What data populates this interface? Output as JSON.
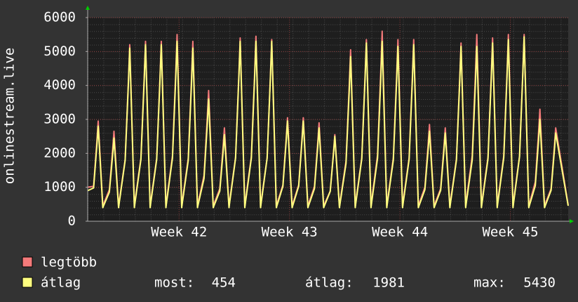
{
  "chart_data": {
    "type": "line",
    "y_axis_label": "onlinestream.live",
    "x": [
      0,
      9,
      14,
      16,
      23,
      33,
      38,
      40,
      47,
      57,
      62,
      64,
      71,
      81,
      86,
      88,
      95,
      105,
      110,
      112,
      119,
      129,
      134,
      136,
      143,
      153,
      158,
      160,
      167,
      177,
      182,
      184,
      191,
      201,
      206,
      208,
      215,
      225,
      230,
      232,
      239,
      249,
      254,
      256,
      263,
      273,
      278,
      280,
      287,
      297,
      302,
      304,
      311,
      321,
      326,
      328,
      335,
      345,
      350,
      352,
      359,
      369,
      374,
      376,
      383,
      393,
      398,
      400,
      407,
      417,
      422,
      424,
      431,
      441,
      446,
      448,
      455,
      465,
      470,
      472,
      479,
      489,
      494,
      496,
      503,
      513,
      518,
      520,
      527,
      537,
      542,
      544,
      551,
      561,
      566,
      568,
      575,
      585,
      590,
      592,
      599,
      609,
      614,
      616,
      623,
      633,
      638,
      640,
      647,
      657,
      662,
      664,
      671,
      681,
      686,
      688,
      695,
      705,
      710,
      712,
      731
    ],
    "series": [
      {
        "name": "legtöbb",
        "color": "#f47a7a",
        "values": [
          1000,
          1030,
          2360,
          2950,
          450,
          930,
          2120,
          2650,
          450,
          1820,
          4160,
          5200,
          450,
          1860,
          4240,
          5300,
          450,
          1860,
          4240,
          5300,
          450,
          1930,
          4400,
          5500,
          450,
          1860,
          4240,
          5300,
          450,
          1350,
          3080,
          3850,
          450,
          960,
          2200,
          2750,
          450,
          1890,
          4320,
          5400,
          450,
          1910,
          4360,
          5450,
          450,
          1870,
          4280,
          5350,
          450,
          1070,
          2440,
          3050,
          450,
          1070,
          2440,
          3050,
          450,
          1020,
          2320,
          2900,
          450,
          890,
          2040,
          2550,
          450,
          1770,
          4040,
          5050,
          450,
          1870,
          4280,
          5350,
          450,
          1960,
          4480,
          5600,
          450,
          1870,
          4280,
          5350,
          450,
          1870,
          4280,
          5350,
          450,
          1000,
          2280,
          2850,
          450,
          960,
          2200,
          2750,
          450,
          1840,
          4200,
          5250,
          450,
          1930,
          4400,
          5500,
          450,
          1890,
          4320,
          5400,
          450,
          1930,
          4400,
          5500,
          450,
          1930,
          4400,
          5500,
          450,
          1160,
          2640,
          3300,
          450,
          960,
          2200,
          2750,
          480
        ]
      },
      {
        "name": "átlag",
        "color": "#ffff80",
        "values": [
          900,
          980,
          2240,
          2800,
          400,
          860,
          1960,
          2450,
          400,
          1790,
          4080,
          5100,
          400,
          1820,
          4160,
          5200,
          400,
          1820,
          4160,
          5200,
          400,
          1860,
          4240,
          5300,
          400,
          1790,
          4080,
          5100,
          400,
          1260,
          2880,
          3600,
          400,
          890,
          2040,
          2550,
          400,
          1860,
          4240,
          5300,
          400,
          1860,
          4240,
          5300,
          400,
          1860,
          4240,
          5300,
          400,
          1030,
          2360,
          2950,
          400,
          1030,
          2360,
          2950,
          400,
          960,
          2200,
          2750,
          400,
          880,
          2000,
          2500,
          400,
          1700,
          3880,
          4850,
          400,
          1840,
          4200,
          5250,
          400,
          1860,
          4240,
          5300,
          400,
          1800,
          4120,
          5150,
          400,
          1820,
          4160,
          5200,
          400,
          930,
          2120,
          2650,
          400,
          910,
          2080,
          2600,
          400,
          1800,
          4120,
          5150,
          400,
          1800,
          4120,
          5150,
          400,
          1840,
          4200,
          5250,
          400,
          1870,
          4280,
          5350,
          400,
          1900,
          4340,
          5430,
          400,
          1050,
          2400,
          3000,
          400,
          910,
          2080,
          2600,
          454
        ]
      }
    ],
    "stats": [
      {
        "label": "most:",
        "value": 454
      },
      {
        "label": "átlag:",
        "value": 1981
      },
      {
        "label": "max:",
        "value": 5430
      }
    ],
    "xlim": [
      0,
      731
    ],
    "xticks": [
      {
        "value": 139,
        "label": "Week 42"
      },
      {
        "value": 307,
        "label": "Week 43"
      },
      {
        "value": 475,
        "label": "Week 44"
      },
      {
        "value": 643,
        "label": "Week 45"
      }
    ],
    "ylim": [
      0,
      6000
    ],
    "yticks": [
      0,
      1000,
      2000,
      3000,
      4000,
      5000,
      6000
    ],
    "grid": true
  }
}
